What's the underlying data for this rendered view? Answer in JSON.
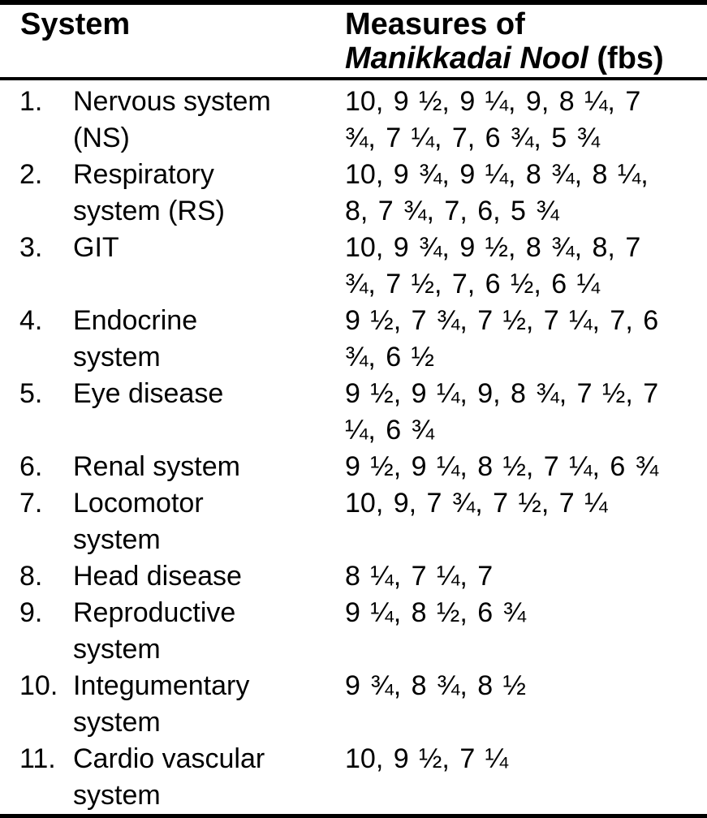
{
  "table": {
    "header": {
      "col1": "System",
      "col2_line1": "Measures of",
      "col2_line2_italic": "Manikkadai Nool",
      "col2_line2_rest": " (fbs)"
    },
    "rows": [
      {
        "num": "1.",
        "system": "Nervous system\n(NS)",
        "measures": "10, 9 ½, 9 ¼, 9, 8 ¼, 7\n¾, 7 ¼, 7, 6 ¾, 5 ¾"
      },
      {
        "num": "2.",
        "system": "Respiratory\nsystem (RS)",
        "measures": "10, 9 ¾, 9 ¼, 8 ¾, 8 ¼,\n8, 7 ¾, 7, 6, 5 ¾"
      },
      {
        "num": "3.",
        "system": "GIT",
        "measures": "10, 9 ¾, 9 ½, 8 ¾, 8, 7\n¾, 7 ½, 7, 6 ½, 6 ¼"
      },
      {
        "num": "4.",
        "system": "Endocrine\nsystem",
        "measures": "9 ½, 7 ¾, 7 ½, 7 ¼, 7, 6\n¾, 6 ½"
      },
      {
        "num": "5.",
        "system": "Eye disease",
        "measures": "9 ½, 9 ¼, 9, 8 ¾, 7 ½, 7\n¼, 6 ¾"
      },
      {
        "num": "6.",
        "system": "Renal system",
        "measures": "9 ½, 9 ¼, 8 ½, 7 ¼, 6 ¾"
      },
      {
        "num": "7.",
        "system": "Locomotor\nsystem",
        "measures": "10, 9, 7 ¾, 7 ½, 7 ¼"
      },
      {
        "num": "8.",
        "system": "Head disease",
        "measures": "8 ¼, 7 ¼, 7"
      },
      {
        "num": "9.",
        "system": "Reproductive\nsystem",
        "measures": "9 ¼, 8 ½, 6 ¾"
      },
      {
        "num": "10.",
        "system": "Integumentary\nsystem",
        "measures": "9 ¾, 8 ¾, 8 ½"
      },
      {
        "num": "11.",
        "system": "Cardio vascular\nsystem",
        "measures": "10, 9 ½, 7 ¼"
      }
    ]
  }
}
